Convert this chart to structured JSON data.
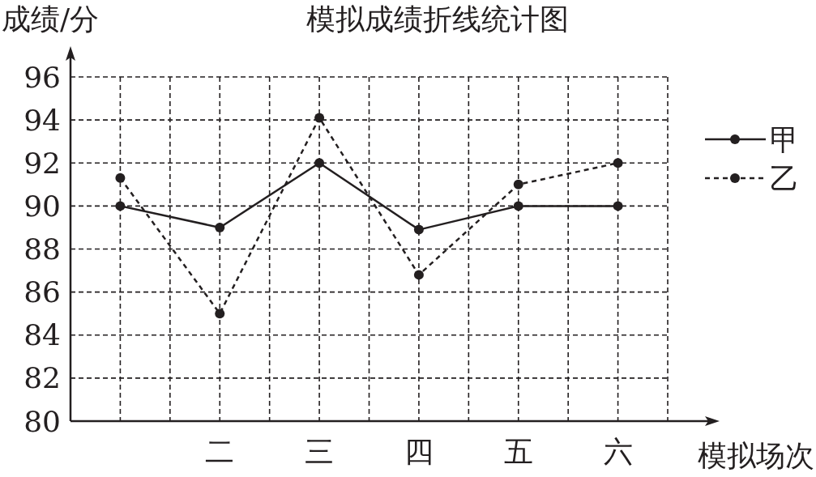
{
  "chart_data": {
    "type": "line",
    "title": "模拟成绩折线统计图",
    "ylabel": "成绩/分",
    "xlabel": "模拟场次",
    "categories": [
      null,
      "二",
      "三",
      "四",
      "五",
      "六"
    ],
    "series": [
      {
        "name": "甲",
        "color": "#231f20",
        "line_style": "solid",
        "values": [
          90,
          89,
          92,
          88.9,
          90,
          90
        ]
      },
      {
        "name": "乙",
        "color": "#231f20",
        "line_style": "dashed",
        "values": [
          91.3,
          85,
          94.1,
          86.8,
          91,
          92
        ]
      }
    ],
    "ylim": [
      80,
      96
    ],
    "yticks": [
      80,
      82,
      84,
      86,
      88,
      90,
      92,
      94,
      96
    ],
    "grid": true,
    "legend": "top right",
    "marker": "circle"
  }
}
